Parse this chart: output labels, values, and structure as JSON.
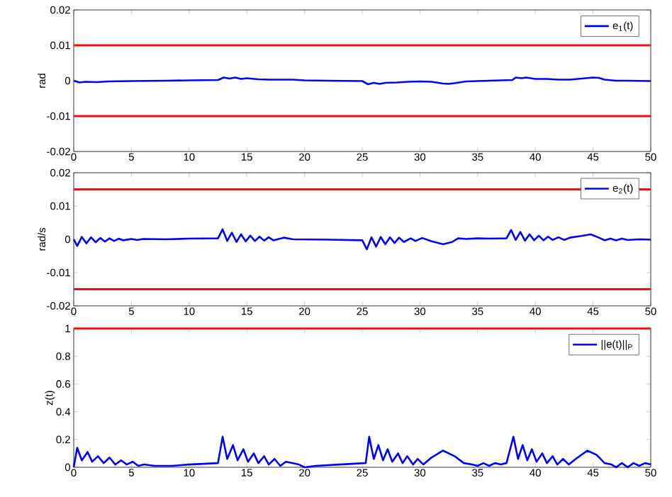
{
  "chart_data": [
    {
      "type": "line",
      "ylabel": "rad",
      "xlim": [
        0,
        50
      ],
      "ylim": [
        -0.02,
        0.02
      ],
      "xticks": [
        0,
        5,
        10,
        15,
        20,
        25,
        30,
        35,
        40,
        45,
        50
      ],
      "yticks": [
        -0.02,
        -0.01,
        0,
        0.01,
        0.02
      ],
      "legend": "top right",
      "ref_lines": [
        {
          "axis": "y",
          "value": 0.01,
          "color": "#e8121a"
        },
        {
          "axis": "y",
          "value": -0.01,
          "color": "#e8121a"
        }
      ],
      "series": [
        {
          "name": "e$_{1}$(t)",
          "color": "#0000ff",
          "x": [
            0,
            0.5,
            1,
            2,
            3,
            5,
            8,
            10,
            12.5,
            13,
            13.5,
            14,
            14.5,
            15,
            16,
            17,
            19,
            20,
            22,
            25,
            25.5,
            26,
            26.5,
            27,
            28,
            29,
            30,
            31,
            32,
            32.5,
            33,
            34,
            36,
            38,
            38.3,
            38.8,
            39.2,
            40,
            41,
            42,
            43,
            44,
            45,
            45.5,
            46,
            47,
            48,
            50
          ],
          "values": [
            0,
            -0.0005,
            -0.0003,
            -0.0004,
            -0.0002,
            -0.0001,
            0,
            0.0001,
            0.0002,
            0.0009,
            0.0006,
            0.0009,
            0.0005,
            0.0007,
            0.0004,
            0.0003,
            0.0003,
            0.0001,
            0,
            -0.0001,
            -0.001,
            -0.0006,
            -0.0009,
            -0.0006,
            -0.0005,
            -0.0003,
            -0.0002,
            -0.0003,
            -0.0008,
            -0.0009,
            -0.0007,
            -0.0002,
            0,
            0.0002,
            0.0009,
            0.0007,
            0.0009,
            0.0005,
            0.0005,
            0.0003,
            0.0003,
            0.0006,
            0.0009,
            0.0008,
            0.0003,
            0,
            0,
            -0.0001
          ]
        }
      ]
    },
    {
      "type": "line",
      "ylabel": "rad/s",
      "xlim": [
        0,
        50
      ],
      "ylim": [
        -0.02,
        0.02
      ],
      "xticks": [
        0,
        5,
        10,
        15,
        20,
        25,
        30,
        35,
        40,
        45,
        50
      ],
      "yticks": [
        -0.02,
        -0.01,
        0,
        0.01,
        0.02
      ],
      "legend": "top right",
      "ref_lines": [
        {
          "axis": "y",
          "value": 0.015,
          "color": "#e8121a"
        },
        {
          "axis": "y",
          "value": -0.015,
          "color": "#e8121a"
        }
      ],
      "series": [
        {
          "name": "e$_{2}$(t)",
          "color": "#0000ff",
          "x": [
            0,
            0.3,
            0.7,
            1.1,
            1.5,
            1.9,
            2.3,
            2.7,
            3.1,
            3.5,
            3.9,
            4.3,
            5,
            5.5,
            6,
            8,
            10,
            12.5,
            12.9,
            13.3,
            13.7,
            14.1,
            14.5,
            14.9,
            15.3,
            15.7,
            16.1,
            16.5,
            16.9,
            17.3,
            18.2,
            19,
            22,
            25,
            25.4,
            25.8,
            26.2,
            26.6,
            27,
            27.4,
            27.8,
            28.2,
            28.6,
            29.2,
            29.6,
            30.2,
            31,
            32,
            32.8,
            33.3,
            34,
            35,
            36,
            37.5,
            37.9,
            38.3,
            38.7,
            39.1,
            39.5,
            39.9,
            40.3,
            40.7,
            41.1,
            41.5,
            42,
            42.5,
            43,
            44,
            44.8,
            45.5,
            46,
            46.5,
            47,
            47.5,
            48,
            49,
            50
          ],
          "values": [
            0,
            -0.002,
            0.0007,
            -0.0012,
            0.0006,
            -0.0009,
            0.0004,
            -0.0007,
            0.0003,
            -0.0005,
            0.0002,
            -0.0003,
            0.0001,
            -0.0002,
            0.0001,
            0,
            0.0002,
            0.0003,
            0.003,
            -0.0005,
            0.002,
            -0.0008,
            0.0015,
            -0.0006,
            0.0011,
            -0.0005,
            0.0008,
            -0.0004,
            0.0006,
            -0.0003,
            0.0005,
            0,
            -0.0001,
            -0.0003,
            -0.003,
            0.0006,
            -0.0022,
            0.0007,
            -0.0015,
            0.0006,
            -0.0011,
            0.0005,
            -0.0008,
            0.0003,
            -0.0005,
            0.0004,
            -0.0006,
            -0.0015,
            -0.0008,
            0.0003,
            0.0001,
            0.0003,
            0.0002,
            0.0003,
            0.0028,
            -0.0002,
            0.0022,
            -0.0004,
            0.0015,
            -0.0003,
            0.0011,
            -0.0003,
            0.0008,
            -0.0002,
            0.0006,
            -0.0002,
            0.0005,
            0.001,
            0.0015,
            0.0005,
            -0.0003,
            0.0002,
            -0.0003,
            0.0002,
            -0.0002,
            0,
            -0.0001
          ]
        }
      ]
    },
    {
      "type": "line",
      "ylabel": "z(t)",
      "xlim": [
        0,
        50
      ],
      "ylim": [
        0,
        1
      ],
      "xticks": [
        0,
        5,
        10,
        15,
        20,
        25,
        30,
        35,
        40,
        45,
        50
      ],
      "yticks": [
        0,
        0.2,
        0.4,
        0.6,
        0.8,
        1
      ],
      "legend": "top right",
      "ref_lines": [
        {
          "axis": "y",
          "value": 1,
          "color": "#e8121a"
        }
      ],
      "series": [
        {
          "name": "||e(t)||$_{P}$",
          "color": "#0000ff",
          "x": [
            0,
            0.3,
            0.7,
            1.2,
            1.6,
            2.1,
            2.6,
            3.1,
            3.6,
            4.1,
            4.6,
            5.1,
            5.6,
            6.1,
            7,
            8.5,
            10,
            12.5,
            12.9,
            13.3,
            13.8,
            14.2,
            14.7,
            15.1,
            15.6,
            16,
            16.5,
            16.9,
            17.4,
            17.9,
            18.4,
            19.5,
            20,
            21,
            23,
            25.3,
            25.6,
            26,
            26.4,
            26.8,
            27.2,
            27.6,
            28.1,
            28.5,
            28.9,
            29.4,
            29.8,
            30.3,
            31,
            32,
            33,
            33.8,
            34.5,
            35,
            35.5,
            36,
            36.5,
            37,
            37.5,
            38.1,
            38.5,
            38.9,
            39.3,
            39.7,
            40.1,
            40.6,
            41,
            41.5,
            41.9,
            42.4,
            42.9,
            43.5,
            44.5,
            45.3,
            46,
            46.6,
            47,
            47.5,
            48,
            48.5,
            49,
            49.5,
            50
          ],
          "values": [
            0,
            0.14,
            0.05,
            0.11,
            0.04,
            0.08,
            0.03,
            0.07,
            0.02,
            0.05,
            0.02,
            0.04,
            0.01,
            0.02,
            0.01,
            0.01,
            0.02,
            0.03,
            0.22,
            0.06,
            0.16,
            0.05,
            0.13,
            0.04,
            0.1,
            0.03,
            0.08,
            0.02,
            0.06,
            0.01,
            0.04,
            0.02,
            0,
            0.01,
            0.02,
            0.03,
            0.22,
            0.06,
            0.16,
            0.05,
            0.13,
            0.04,
            0.1,
            0.03,
            0.08,
            0.02,
            0.06,
            0.02,
            0.07,
            0.12,
            0.08,
            0.03,
            0.02,
            0.01,
            0.03,
            0.01,
            0.03,
            0.02,
            0.03,
            0.22,
            0.06,
            0.16,
            0.05,
            0.13,
            0.04,
            0.1,
            0.03,
            0.08,
            0.02,
            0.06,
            0.02,
            0.06,
            0.12,
            0.09,
            0.03,
            0.02,
            0,
            0.03,
            0,
            0.03,
            0.01,
            0.03,
            0.02
          ]
        }
      ]
    }
  ]
}
